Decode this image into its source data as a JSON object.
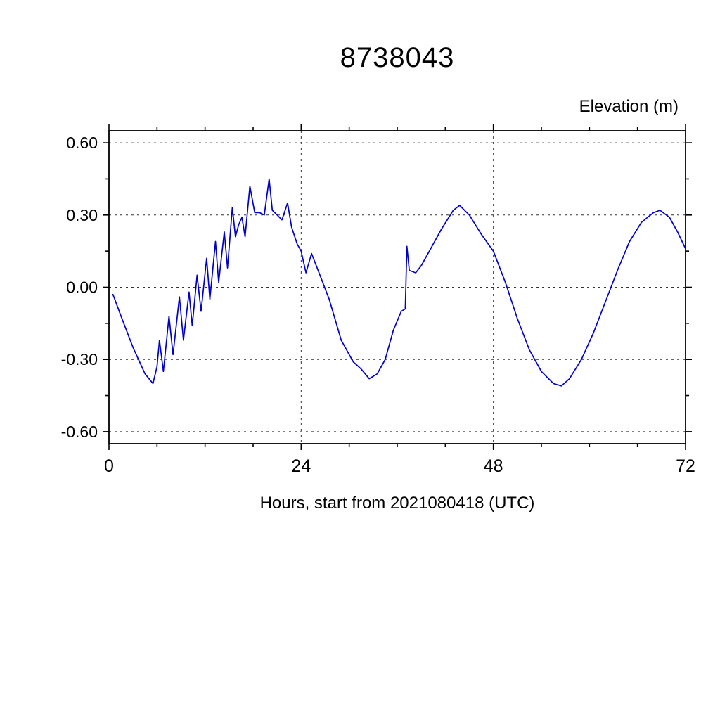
{
  "page": {
    "background_color": "#ffffff",
    "text_color": "#000000"
  },
  "chart_data": {
    "type": "line",
    "title": "8738043",
    "ylabel": "Elevation (m)",
    "xlabel": "Hours, start from 2021080418 (UTC)",
    "grid": "dashed",
    "legend_position": "none",
    "xlim": [
      0,
      72
    ],
    "ylim": [
      -0.65,
      0.65
    ],
    "xticks": [
      0,
      24,
      48,
      72
    ],
    "x_tick_labels": [
      "0",
      "24",
      "48",
      "72"
    ],
    "yticks": [
      0.6,
      0.3,
      0.0,
      -0.3,
      -0.6
    ],
    "y_tick_labels": [
      "0.60",
      "0.30",
      "0.00",
      "-0.30",
      "-0.60"
    ],
    "xminor": [
      6,
      12,
      18,
      30,
      36,
      42,
      54,
      60,
      66
    ],
    "yminor": [
      0.45,
      0.15,
      -0.15,
      -0.45
    ],
    "xgrid": [
      24,
      48
    ],
    "line_color": "#0000cd",
    "series": [
      {
        "name": "elevation",
        "color": "#0000cd",
        "x": [
          0.5,
          1.5,
          3,
          4.5,
          5.5,
          6,
          6.3,
          6.8,
          7.5,
          8,
          8.8,
          9.3,
          10,
          10.4,
          11,
          11.5,
          12.2,
          12.6,
          13.3,
          13.7,
          14.4,
          14.8,
          15.4,
          15.8,
          16.2,
          16.6,
          17,
          17.6,
          18.2,
          18.8,
          19.4,
          20,
          20.4,
          21,
          21.6,
          22.3,
          22.8,
          23.5,
          24,
          24.6,
          25.3,
          26,
          27.5,
          29,
          30.5,
          31.5,
          32.5,
          33.5,
          34.5,
          35.5,
          36.5,
          37,
          37.2,
          37.5,
          38.3,
          39,
          40,
          41.5,
          43,
          43.8,
          45,
          46.5,
          48,
          49.5,
          51,
          52.5,
          54,
          55.5,
          56.5,
          57.5,
          59,
          60.5,
          62,
          63.5,
          65,
          66.5,
          68,
          68.8,
          70,
          71,
          72
        ],
        "y": [
          -0.03,
          -0.12,
          -0.25,
          -0.36,
          -0.4,
          -0.33,
          -0.22,
          -0.35,
          -0.12,
          -0.28,
          -0.04,
          -0.22,
          -0.02,
          -0.16,
          0.05,
          -0.1,
          0.12,
          -0.05,
          0.19,
          0.02,
          0.23,
          0.08,
          0.33,
          0.21,
          0.26,
          0.29,
          0.21,
          0.42,
          0.31,
          0.31,
          0.3,
          0.45,
          0.32,
          0.3,
          0.28,
          0.35,
          0.25,
          0.18,
          0.15,
          0.06,
          0.14,
          0.08,
          -0.05,
          -0.22,
          -0.31,
          -0.34,
          -0.38,
          -0.36,
          -0.3,
          -0.18,
          -0.1,
          -0.09,
          0.17,
          0.07,
          0.06,
          0.09,
          0.15,
          0.24,
          0.32,
          0.34,
          0.3,
          0.22,
          0.15,
          0.02,
          -0.13,
          -0.26,
          -0.35,
          -0.4,
          -0.41,
          -0.38,
          -0.3,
          -0.19,
          -0.06,
          0.07,
          0.19,
          0.27,
          0.31,
          0.32,
          0.29,
          0.23,
          0.16
        ]
      }
    ]
  }
}
